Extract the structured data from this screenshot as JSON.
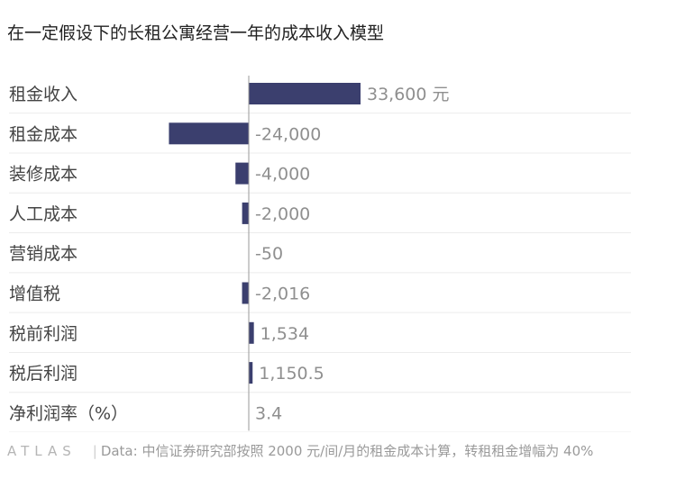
{
  "title": "在一定假设下的长租公寓经营一年的成本收入模型",
  "chart_data": {
    "type": "bar",
    "orientation": "horizontal",
    "categories": [
      "租金收入",
      "租金成本",
      "装修成本",
      "人工成本",
      "营销成本",
      "增值税",
      "税前利润",
      "税后利润",
      "净利润率（%）"
    ],
    "values": [
      33600,
      -24000,
      -4000,
      -2000,
      -50,
      -2016,
      1534,
      1150.5,
      3.4
    ],
    "value_labels": [
      "33,600 元",
      "-24,000",
      "-4,000",
      "-2,000",
      "-50",
      "-2,016",
      "1,534",
      "1,150.5",
      "3.4"
    ],
    "xlim": [
      -33600,
      45000
    ],
    "bar_color": "#3b3f6e",
    "grid": "horizontal"
  },
  "footer": {
    "logo": "ATLAS",
    "separator": "|",
    "source": "Data: 中信证券研究部按照 2000 元/间/月的租金成本计算，转租租金增幅为 40%"
  }
}
